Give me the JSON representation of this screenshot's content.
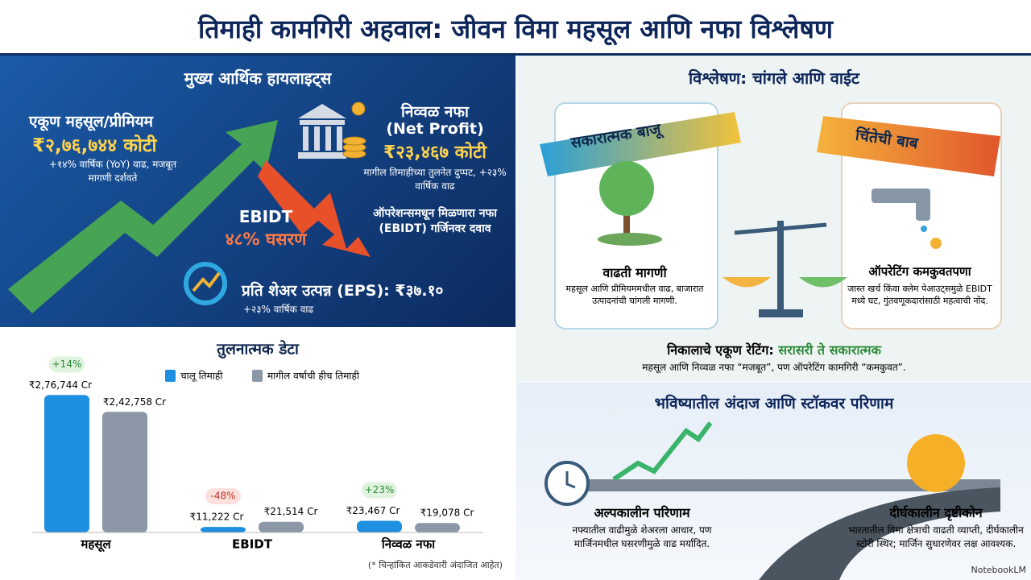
{
  "header": {
    "title": "तिमाही कामगिरी अहवाल: जीवन विमा महसूल आणि नफा विश्लेषण"
  },
  "highlights": {
    "title": "मुख्य आर्थिक हायलाइट्स",
    "revenue": {
      "label": "एकूण महसूल/प्रीमियम",
      "value": "₹२,७६,७४४ कोटी",
      "note": "+१४% वार्षिक (YoY) वाढ, मजबूत मागणी दर्शवते"
    },
    "net_profit": {
      "label": "निव्वळ नफा",
      "label_en": "(Net Profit)",
      "value": "₹२३,४६७ कोटी",
      "note": "मागील तिमाहीच्या तुलनेत दुप्पट, +२३% वार्षिक वाढ"
    },
    "ebidt": {
      "label": "EBIDT",
      "value": "४८% घसरण",
      "note": "ऑपरेशन्समधून मिळणारा नफा (EBIDT) गर्जिनवर दवाव"
    },
    "eps": {
      "label": "प्रति शेअर उत्पन्न (EPS): ₹३७.१०",
      "note": "+२३% वार्षिक वाढ"
    }
  },
  "chart_data": {
    "type": "bar",
    "title": "तुलनात्मक डेटा",
    "categories": [
      "महसूल",
      "EBIDT",
      "निव्वळ नफा"
    ],
    "series": [
      {
        "name": "चालू तिमाही",
        "color": "#1e8fe1",
        "values": [
          276744,
          11222,
          23467
        ],
        "value_labels": [
          "₹2,76,744 Cr",
          "₹11,222 Cr",
          "₹23,467 Cr"
        ]
      },
      {
        "name": "मागील वर्षाची हीच तिमाही",
        "color": "#8c97a7",
        "values": [
          242758,
          21514,
          19078
        ],
        "value_labels": [
          "₹2,42,758 Cr",
          "₹21,514 Cr",
          "₹19,078 Cr"
        ]
      }
    ],
    "annotations": [
      "+14%",
      "-48%",
      "+23%"
    ],
    "ylim": [
      0,
      300000
    ],
    "footnote": "(* चिन्हांकित आकडेवारी अंदाजित आहेत)"
  },
  "analysis": {
    "title": "विश्लेषण: चांगले आणि वाईट",
    "positive": {
      "ribbon": "सकारात्मक बाजू",
      "heading": "वाढती मागणी",
      "text": "महसूल आणि प्रीमियममधील वाढ, बाजारात उत्पादनांची चांगली मागणी."
    },
    "concern": {
      "ribbon": "चिंतेची बाब",
      "heading": "ऑपरेटिंग कमकुवतपणा",
      "text": "जास्त खर्च किंवा क्लेम पेआउट्समुळे EBIDT मध्ये घट, गुंतवणूकदारांसाठी महत्वाची नोंद."
    },
    "verdict": {
      "label": "निकालाचे एकूण रेटिंग:",
      "rating": "सरासरी ते सकारात्मक",
      "text": "महसूल आणि निव्वळ नफा “मजबूत”, पण ऑपरेटिंग कामगिरी “कमकुवत”."
    }
  },
  "outlook": {
    "title": "भविष्यातील अंदाज आणि स्टॉकवर परिणाम",
    "short_term": {
      "heading": "अल्पकालीन परिणाम",
      "text": "नफ्यातील वाढीमुळे शेअरला आधार, पण मार्जिनमधील घसरणीमुळे वाढ मर्यादित."
    },
    "long_term": {
      "heading": "दीर्घकालीन दृष्टीकोन",
      "text": "भारतातील विमा क्षेत्राची वाढती व्याप्ती, दीर्घकालीन स्टोरी स्थिर; मार्जिन सुधारणेवर लक्ष आवश्यक."
    },
    "brand": "NotebookLM"
  }
}
